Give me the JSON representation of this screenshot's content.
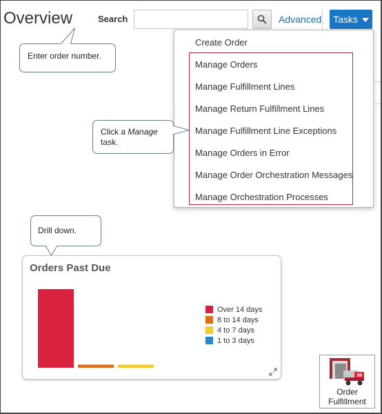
{
  "page": {
    "title": "Overview"
  },
  "header": {
    "search_label": "Search",
    "search_value": "",
    "search_placeholder": "",
    "search_icon": "search-icon",
    "advanced_label": "Advanced",
    "tasks_label": "Tasks"
  },
  "tasks_menu": {
    "items": [
      {
        "label": "Create Order"
      },
      {
        "label": "Manage Orders"
      },
      {
        "label": "Manage Fulfillment Lines"
      },
      {
        "label": "Manage Return Fulfillment Lines"
      },
      {
        "label": "Manage Fulfillment Line Exceptions"
      },
      {
        "label": "Manage Orders in Error"
      },
      {
        "label": "Manage Order Orchestration Messages"
      },
      {
        "label": "Manage Orchestration Processes"
      }
    ]
  },
  "callouts": {
    "search": "Enter order number.",
    "manage_prefix": "Click a ",
    "manage_em": "Manage",
    "manage_suffix": "task.",
    "drill": "Drill down."
  },
  "chart_card": {
    "title": "Orders Past Due"
  },
  "chart_data": {
    "type": "bar",
    "title": "Orders Past Due",
    "categories": [
      "Over 14 days",
      "8 to 14 days",
      "4 to 7 days",
      "1 to 3 days"
    ],
    "values": [
      100,
      4,
      4,
      0
    ],
    "colors": [
      "#d8213c",
      "#d96d1a",
      "#f5c930",
      "#2f86c6"
    ],
    "legend_position": "right",
    "grid": false,
    "xlabel": "",
    "ylabel": "",
    "ylim": [
      0,
      100
    ]
  },
  "app_tile": {
    "label_line1": "Order",
    "label_line2": "Fulfillment",
    "icon": "truck-icon"
  },
  "colors": {
    "accent": "#1876c5",
    "link": "#1a6cb0",
    "highlight": "#b0273a"
  }
}
